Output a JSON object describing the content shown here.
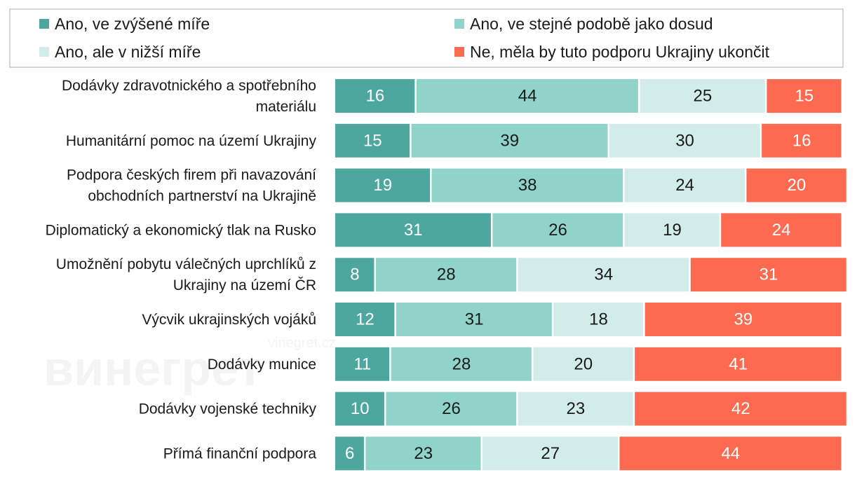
{
  "chart_data": {
    "type": "bar",
    "orientation": "horizontal",
    "stacked": true,
    "legend_position": "top",
    "xlim": [
      0,
      100
    ],
    "categories": [
      "Dodávky zdravotnického a spotřebního materiálu",
      "Humanitární pomoc na území Ukrajiny",
      "Podpora českých firem při navazování obchodních partnerství na Ukrajině",
      "Diplomatický a ekonomický tlak na Rusko",
      "Umožnění pobytu válečných uprchlíků z Ukrajiny na území ČR",
      "Výcvik ukrajinských vojáků",
      "Dodávky munice",
      "Dodávky vojenské techniky",
      "Přímá finanční podpora"
    ],
    "category_lines": [
      [
        "Dodávky zdravotnického a spotřebního",
        "materiálu"
      ],
      [
        "Humanitární pomoc na území Ukrajiny"
      ],
      [
        "Podpora českých firem při navazování",
        "obchodních partnerství na Ukrajině"
      ],
      [
        "Diplomatický a ekonomický tlak na Rusko"
      ],
      [
        "Umožnění pobytu válečných uprchlíků z",
        "Ukrajiny na území ČR"
      ],
      [
        "Výcvik ukrajinských vojáků"
      ],
      [
        "Dodávky munice"
      ],
      [
        "Dodávky vojenské techniky"
      ],
      [
        "Přímá finanční podpora"
      ]
    ],
    "series": [
      {
        "name": "Ano, ve zvýšené míře",
        "color": "#4ea79f",
        "label_color": "#ffffff",
        "values": [
          16,
          15,
          19,
          31,
          8,
          12,
          11,
          10,
          6
        ]
      },
      {
        "name": "Ano, ve stejné podobě jako dosud",
        "color": "#8fd3cb",
        "label_color": "#1a1a1a",
        "values": [
          44,
          39,
          38,
          26,
          28,
          31,
          28,
          26,
          23
        ]
      },
      {
        "name": "Ano, ale v nižší míře",
        "color": "#d2ecea",
        "label_color": "#1a1a1a",
        "values": [
          25,
          30,
          24,
          19,
          34,
          18,
          20,
          23,
          27
        ]
      },
      {
        "name": "Ne, měla by tuto podporu Ukrajiny ukončit",
        "color": "#fe6a50",
        "label_color": "#ffffff",
        "values": [
          15,
          16,
          20,
          24,
          31,
          39,
          41,
          42,
          44
        ]
      }
    ],
    "watermark": [
      "винегрет",
      "vinegret.cz"
    ]
  }
}
